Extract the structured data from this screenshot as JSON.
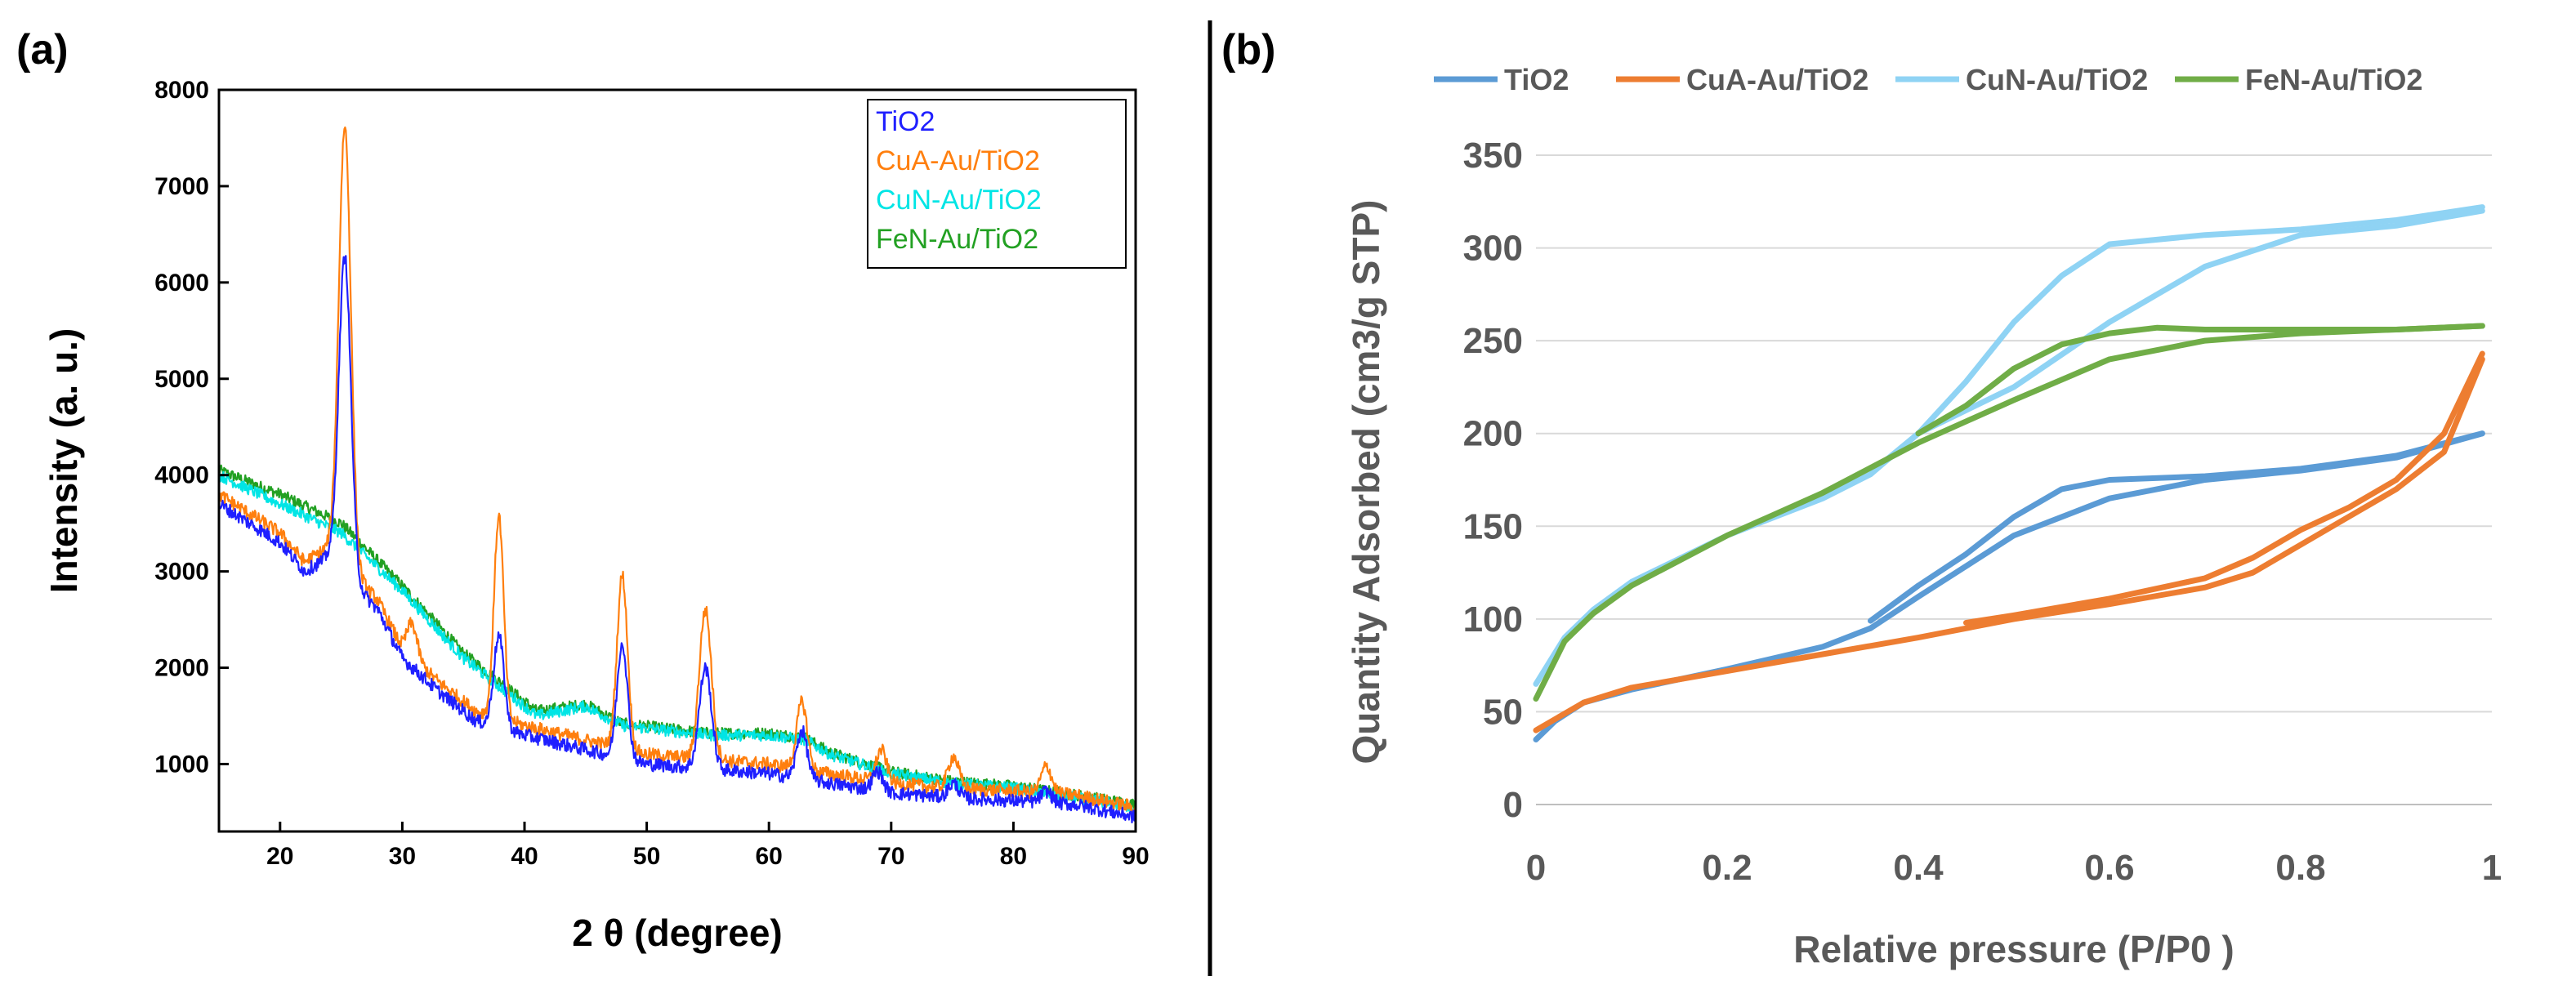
{
  "chart_data": [
    {
      "id": "a",
      "panel_label": "(a)",
      "type": "line",
      "title": "",
      "xlabel": "2 θ (degree)",
      "ylabel": "Intensity (a. u.)",
      "xlim": [
        15,
        90
      ],
      "ylim": [
        300,
        8000
      ],
      "xticks": [
        20,
        30,
        40,
        50,
        60,
        70,
        80,
        90
      ],
      "yticks": [
        1000,
        2000,
        3000,
        4000,
        5000,
        6000,
        7000,
        8000
      ],
      "legend_position": "top-right",
      "baseline": [
        [
          15,
          3700
        ],
        [
          20,
          3300
        ],
        [
          22,
          3000
        ],
        [
          24,
          3150
        ],
        [
          28,
          2600
        ],
        [
          30,
          2100
        ],
        [
          33,
          1750
        ],
        [
          36,
          1450
        ],
        [
          40,
          1300
        ],
        [
          45,
          1150
        ],
        [
          50,
          1000
        ],
        [
          55,
          950
        ],
        [
          60,
          900
        ],
        [
          65,
          800
        ],
        [
          70,
          700
        ],
        [
          75,
          650
        ],
        [
          80,
          620
        ],
        [
          85,
          580
        ],
        [
          90,
          450
        ]
      ],
      "series": [
        {
          "name": "TiO2",
          "color": "#1f1fff",
          "peaks": [
            [
              25.3,
              3300,
              0.7
            ],
            [
              37.9,
              950,
              0.6
            ],
            [
              48.0,
              1200,
              0.6
            ],
            [
              54.8,
              1050,
              0.7
            ],
            [
              62.7,
              500,
              0.6
            ],
            [
              68.9,
              200,
              0.6
            ],
            [
              75.1,
              150,
              0.6
            ],
            [
              82.7,
              120,
              0.6
            ]
          ],
          "noise": 70
        },
        {
          "name": "CuA-Au/TiO2",
          "color": "#ff7f0e",
          "offset": 100,
          "peaks": [
            [
              25.3,
              4550,
              0.7
            ],
            [
              30.8,
              350,
              0.6
            ],
            [
              37.9,
              2100,
              0.55
            ],
            [
              48.0,
              1800,
              0.6
            ],
            [
              54.8,
              1550,
              0.7
            ],
            [
              62.7,
              700,
              0.6
            ],
            [
              69.2,
              330,
              0.6
            ],
            [
              75.1,
              330,
              0.6
            ],
            [
              82.7,
              280,
              0.6
            ]
          ],
          "noise": 70
        },
        {
          "name": "CuN-Au/TiO2",
          "color": "#00e5e5",
          "points": [
            [
              15,
              4000
            ],
            [
              20,
              3700
            ],
            [
              25,
              3400
            ],
            [
              30,
              2800
            ],
            [
              35,
              2100
            ],
            [
              38,
              1800
            ],
            [
              41,
              1500
            ],
            [
              45,
              1600
            ],
            [
              48,
              1400
            ],
            [
              55,
              1300
            ],
            [
              60,
              1300
            ],
            [
              63,
              1250
            ],
            [
              65,
              1100
            ],
            [
              70,
              900
            ],
            [
              75,
              800
            ],
            [
              80,
              750
            ],
            [
              85,
              650
            ],
            [
              90,
              550
            ]
          ],
          "noise": 60
        },
        {
          "name": "FeN-Au/TiO2",
          "color": "#22a022",
          "points": [
            [
              15,
              4050
            ],
            [
              20,
              3800
            ],
            [
              25,
              3500
            ],
            [
              30,
              2850
            ],
            [
              35,
              2150
            ],
            [
              38,
              1850
            ],
            [
              41,
              1550
            ],
            [
              45,
              1620
            ],
            [
              48,
              1420
            ],
            [
              55,
              1320
            ],
            [
              60,
              1320
            ],
            [
              63,
              1270
            ],
            [
              65,
              1120
            ],
            [
              70,
              920
            ],
            [
              75,
              820
            ],
            [
              80,
              770
            ],
            [
              85,
              680
            ],
            [
              90,
              580
            ]
          ],
          "noise": 60
        }
      ]
    },
    {
      "id": "b",
      "panel_label": "(b)",
      "type": "line",
      "title": "",
      "xlabel": "Relative pressure (P/P0 )",
      "ylabel": "Quantity Adsorbed (cm3/g STP)",
      "xlim": [
        0,
        1
      ],
      "ylim": [
        0,
        350
      ],
      "xticks": [
        "0",
        "0.2",
        "0.4",
        "0.6",
        "0.8",
        "1"
      ],
      "yticks": [
        "0",
        "50",
        "100",
        "150",
        "200",
        "250",
        "300",
        "350"
      ],
      "grid": true,
      "legend_position": "top",
      "series": [
        {
          "name": "TiO2",
          "color": "#5b9bd5",
          "adsorption": [
            [
              0.0,
              35
            ],
            [
              0.02,
              45
            ],
            [
              0.05,
              55
            ],
            [
              0.1,
              62
            ],
            [
              0.2,
              73
            ],
            [
              0.3,
              85
            ],
            [
              0.35,
              95
            ],
            [
              0.4,
              112
            ],
            [
              0.5,
              145
            ],
            [
              0.6,
              165
            ],
            [
              0.7,
              175
            ],
            [
              0.8,
              180
            ],
            [
              0.9,
              187
            ],
            [
              0.99,
              200
            ]
          ],
          "desorption": [
            [
              0.99,
              200
            ],
            [
              0.9,
              188
            ],
            [
              0.8,
              181
            ],
            [
              0.7,
              177
            ],
            [
              0.6,
              175
            ],
            [
              0.55,
              170
            ],
            [
              0.5,
              155
            ],
            [
              0.45,
              135
            ],
            [
              0.4,
              118
            ],
            [
              0.35,
              99
            ]
          ]
        },
        {
          "name": "CuA-Au/TiO2",
          "color": "#ed7d31",
          "adsorption": [
            [
              0.0,
              40
            ],
            [
              0.02,
              46
            ],
            [
              0.05,
              55
            ],
            [
              0.1,
              63
            ],
            [
              0.2,
              72
            ],
            [
              0.3,
              81
            ],
            [
              0.4,
              90
            ],
            [
              0.5,
              100
            ],
            [
              0.6,
              108
            ],
            [
              0.7,
              117
            ],
            [
              0.75,
              125
            ],
            [
              0.8,
              140
            ],
            [
              0.85,
              155
            ],
            [
              0.9,
              170
            ],
            [
              0.95,
              190
            ],
            [
              0.99,
              240
            ]
          ],
          "desorption": [
            [
              0.99,
              243
            ],
            [
              0.95,
              200
            ],
            [
              0.9,
              175
            ],
            [
              0.85,
              160
            ],
            [
              0.8,
              148
            ],
            [
              0.75,
              133
            ],
            [
              0.7,
              122
            ],
            [
              0.6,
              111
            ],
            [
              0.5,
              102
            ],
            [
              0.45,
              98
            ]
          ]
        },
        {
          "name": "CuN-Au/TiO2",
          "color": "#8fd3f4",
          "adsorption": [
            [
              0.0,
              65
            ],
            [
              0.03,
              90
            ],
            [
              0.06,
              105
            ],
            [
              0.1,
              120
            ],
            [
              0.2,
              145
            ],
            [
              0.3,
              165
            ],
            [
              0.35,
              178
            ],
            [
              0.4,
              200
            ],
            [
              0.5,
              225
            ],
            [
              0.6,
              260
            ],
            [
              0.7,
              290
            ],
            [
              0.8,
              307
            ],
            [
              0.9,
              312
            ],
            [
              0.99,
              320
            ]
          ],
          "desorption": [
            [
              0.99,
              322
            ],
            [
              0.9,
              315
            ],
            [
              0.8,
              310
            ],
            [
              0.7,
              307
            ],
            [
              0.6,
              302
            ],
            [
              0.55,
              285
            ],
            [
              0.5,
              260
            ],
            [
              0.45,
              228
            ],
            [
              0.4,
              200
            ],
            [
              0.36,
              183
            ]
          ]
        },
        {
          "name": "FeN-Au/TiO2",
          "color": "#70ad47",
          "adsorption": [
            [
              0.0,
              57
            ],
            [
              0.03,
              88
            ],
            [
              0.06,
              103
            ],
            [
              0.1,
              118
            ],
            [
              0.2,
              145
            ],
            [
              0.3,
              168
            ],
            [
              0.4,
              195
            ],
            [
              0.5,
              218
            ],
            [
              0.6,
              240
            ],
            [
              0.7,
              250
            ],
            [
              0.8,
              254
            ],
            [
              0.9,
              256
            ],
            [
              0.99,
              258
            ]
          ],
          "desorption": [
            [
              0.99,
              258
            ],
            [
              0.9,
              256
            ],
            [
              0.8,
              256
            ],
            [
              0.7,
              256
            ],
            [
              0.65,
              257
            ],
            [
              0.6,
              254
            ],
            [
              0.55,
              248
            ],
            [
              0.5,
              235
            ],
            [
              0.45,
              215
            ],
            [
              0.4,
              200
            ]
          ]
        }
      ]
    }
  ]
}
